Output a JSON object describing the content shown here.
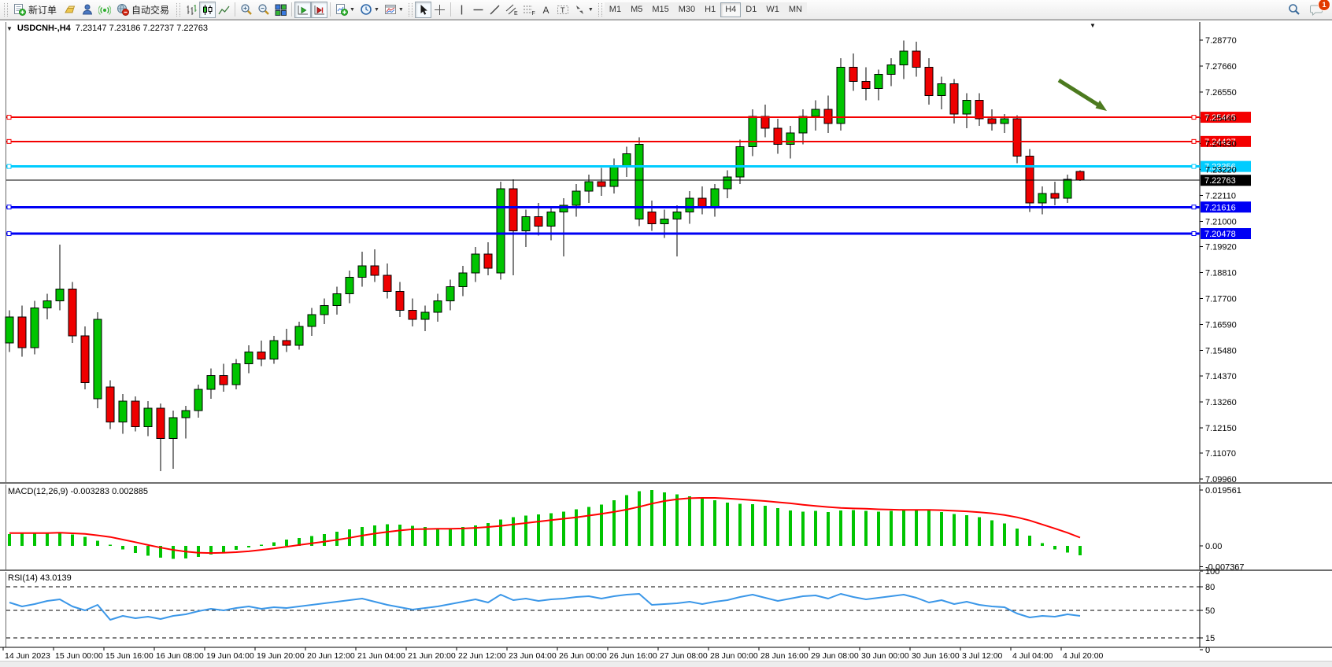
{
  "toolbar": {
    "new_order_label": "新订单",
    "auto_trading_label": "自动交易",
    "timeframes": [
      "M1",
      "M5",
      "M15",
      "M30",
      "H1",
      "H4",
      "D1",
      "W1",
      "MN"
    ],
    "active_timeframe": "H4",
    "chat_badge_count": "1"
  },
  "chart_header": {
    "symbol": "USDCNH-,H4",
    "ohlc": "7.23147 7.23186 7.22737 7.22763"
  },
  "price_axis": {
    "ticks": [
      "7.28770",
      "7.27660",
      "7.26550",
      "7.25440",
      "7.24330",
      "7.23220",
      "7.22110",
      "7.21000",
      "7.19920",
      "7.18810",
      "7.17700",
      "7.16590",
      "7.15480",
      "7.14370",
      "7.13260",
      "7.12150",
      "7.11070",
      "7.09960"
    ]
  },
  "hlines": [
    {
      "label": "7.25465",
      "value": 7.25465,
      "color": "#F40000",
      "width": 2,
      "type": "resistance"
    },
    {
      "label": "7.24427",
      "value": 7.24427,
      "color": "#F40000",
      "width": 2,
      "type": "resistance"
    },
    {
      "label": "7.23356",
      "value": 7.23356,
      "color": "#00CCFF",
      "width": 3,
      "type": "level"
    },
    {
      "label": "7.22763",
      "value": 7.22763,
      "color": "#000000",
      "width": 1,
      "type": "current-price"
    },
    {
      "label": "7.21616",
      "value": 7.21616,
      "color": "#0000F4",
      "width": 3,
      "type": "support"
    },
    {
      "label": "7.20478",
      "value": 7.20478,
      "color": "#0000F4",
      "width": 3,
      "type": "support"
    }
  ],
  "time_axis": {
    "labels": [
      "14 Jun 2023",
      "15 Jun 00:00",
      "15 Jun 16:00",
      "16 Jun 08:00",
      "19 Jun 04:00",
      "19 Jun 20:00",
      "20 Jun 12:00",
      "21 Jun 04:00",
      "21 Jun 20:00",
      "22 Jun 12:00",
      "23 Jun 04:00",
      "26 Jun 00:00",
      "26 Jun 16:00",
      "27 Jun 08:00",
      "28 Jun 00:00",
      "28 Jun 16:00",
      "29 Jun 08:00",
      "30 Jun 00:00",
      "30 Jun 16:00",
      "3 Jul 12:00",
      "4 Jul 04:00",
      "4 Jul 20:00"
    ]
  },
  "indicators": {
    "macd": {
      "label": "MACD(12,26,9)",
      "values_text": "-0.003283 0.002885",
      "axis": [
        "0.019561",
        "0.00",
        "-0.007367"
      ],
      "axis_values": [
        0.019561,
        0.0,
        -0.007367
      ]
    },
    "rsi": {
      "label": "RSI(14)",
      "value_text": "43.0139",
      "axis": [
        "100",
        "80",
        "50",
        "15",
        "0"
      ],
      "axis_values": [
        100,
        80,
        50,
        15,
        0
      ],
      "dashed_levels": [
        80,
        50,
        15
      ]
    }
  },
  "annotation": {
    "type": "down-right-arrow",
    "color": "#4C7A1F"
  },
  "colors": {
    "candle_up": "#00C400",
    "candle_down": "#EE0000",
    "candle_outline": "#000000",
    "macd_histogram": "#00C400",
    "macd_signal": "#FF0000",
    "rsi_line": "#3B97E8",
    "axis_text": "#000000",
    "label_text": "#FFFFFF"
  },
  "chart_data": {
    "type": "candlestick",
    "symbol": "USDCNH-",
    "timeframe": "H4",
    "title": "USDCNH-,H4 7.23147 7.23186 7.22737 7.22763",
    "ylim": [
      7.0996,
      7.2877
    ],
    "candles_ohlc": [
      [
        7.158,
        7.172,
        7.154,
        7.169
      ],
      [
        7.169,
        7.174,
        7.152,
        7.156
      ],
      [
        7.156,
        7.176,
        7.153,
        7.173
      ],
      [
        7.173,
        7.179,
        7.168,
        7.176
      ],
      [
        7.176,
        7.2,
        7.172,
        7.181
      ],
      [
        7.181,
        7.184,
        7.158,
        7.161
      ],
      [
        7.161,
        7.165,
        7.138,
        7.141
      ],
      [
        7.134,
        7.171,
        7.13,
        7.168
      ],
      [
        7.139,
        7.142,
        7.121,
        7.124
      ],
      [
        7.124,
        7.136,
        7.119,
        7.133
      ],
      [
        7.133,
        7.135,
        7.12,
        7.122
      ],
      [
        7.122,
        7.133,
        7.118,
        7.13
      ],
      [
        7.13,
        7.132,
        7.103,
        7.117
      ],
      [
        7.117,
        7.129,
        7.104,
        7.126
      ],
      [
        7.126,
        7.131,
        7.117,
        7.129
      ],
      [
        7.129,
        7.14,
        7.126,
        7.138
      ],
      [
        7.138,
        7.147,
        7.134,
        7.144
      ],
      [
        7.144,
        7.149,
        7.137,
        7.14
      ],
      [
        7.14,
        7.151,
        7.138,
        7.149
      ],
      [
        7.149,
        7.157,
        7.145,
        7.154
      ],
      [
        7.154,
        7.159,
        7.148,
        7.151
      ],
      [
        7.151,
        7.161,
        7.149,
        7.159
      ],
      [
        7.159,
        7.164,
        7.154,
        7.157
      ],
      [
        7.157,
        7.167,
        7.155,
        7.165
      ],
      [
        7.165,
        7.173,
        7.161,
        7.17
      ],
      [
        7.17,
        7.177,
        7.166,
        7.174
      ],
      [
        7.174,
        7.182,
        7.17,
        7.179
      ],
      [
        7.179,
        7.189,
        7.175,
        7.186
      ],
      [
        7.186,
        7.197,
        7.182,
        7.191
      ],
      [
        7.191,
        7.198,
        7.184,
        7.187
      ],
      [
        7.187,
        7.192,
        7.177,
        7.18
      ],
      [
        7.18,
        7.184,
        7.169,
        7.172
      ],
      [
        7.172,
        7.177,
        7.165,
        7.168
      ],
      [
        7.168,
        7.174,
        7.163,
        7.171
      ],
      [
        7.171,
        7.179,
        7.167,
        7.176
      ],
      [
        7.176,
        7.185,
        7.172,
        7.182
      ],
      [
        7.182,
        7.191,
        7.178,
        7.188
      ],
      [
        7.188,
        7.199,
        7.184,
        7.196
      ],
      [
        7.196,
        7.201,
        7.187,
        7.19
      ],
      [
        7.188,
        7.227,
        7.185,
        7.224
      ],
      [
        7.224,
        7.228,
        7.187,
        7.206
      ],
      [
        7.206,
        7.215,
        7.199,
        7.212
      ],
      [
        7.212,
        7.218,
        7.204,
        7.208
      ],
      [
        7.208,
        7.216,
        7.202,
        7.214
      ],
      [
        7.214,
        7.22,
        7.195,
        7.217
      ],
      [
        7.217,
        7.226,
        7.212,
        7.223
      ],
      [
        7.223,
        7.23,
        7.218,
        7.227
      ],
      [
        7.227,
        7.233,
        7.221,
        7.225
      ],
      [
        7.225,
        7.237,
        7.222,
        7.234
      ],
      [
        7.234,
        7.242,
        7.229,
        7.239
      ],
      [
        7.211,
        7.246,
        7.208,
        7.243
      ],
      [
        7.214,
        7.219,
        7.206,
        7.209
      ],
      [
        7.209,
        7.215,
        7.203,
        7.211
      ],
      [
        7.211,
        7.217,
        7.195,
        7.214
      ],
      [
        7.214,
        7.223,
        7.209,
        7.22
      ],
      [
        7.22,
        7.225,
        7.213,
        7.216
      ],
      [
        7.216,
        7.226,
        7.212,
        7.224
      ],
      [
        7.224,
        7.232,
        7.22,
        7.229
      ],
      [
        7.229,
        7.245,
        7.226,
        7.242
      ],
      [
        7.242,
        7.258,
        7.238,
        7.255
      ],
      [
        7.255,
        7.26,
        7.246,
        7.25
      ],
      [
        7.25,
        7.254,
        7.239,
        7.243
      ],
      [
        7.243,
        7.251,
        7.237,
        7.248
      ],
      [
        7.248,
        7.258,
        7.243,
        7.255
      ],
      [
        7.255,
        7.262,
        7.249,
        7.258
      ],
      [
        7.258,
        7.264,
        7.248,
        7.252
      ],
      [
        7.252,
        7.28,
        7.249,
        7.276
      ],
      [
        7.276,
        7.282,
        7.266,
        7.27
      ],
      [
        7.27,
        7.276,
        7.262,
        7.267
      ],
      [
        7.267,
        7.275,
        7.262,
        7.273
      ],
      [
        7.273,
        7.28,
        7.268,
        7.277
      ],
      [
        7.277,
        7.2876,
        7.271,
        7.283
      ],
      [
        7.283,
        7.2871,
        7.272,
        7.276
      ],
      [
        7.276,
        7.28,
        7.26,
        7.264
      ],
      [
        7.264,
        7.272,
        7.258,
        7.269
      ],
      [
        7.269,
        7.271,
        7.252,
        7.256
      ],
      [
        7.256,
        7.265,
        7.25,
        7.262
      ],
      [
        7.262,
        7.265,
        7.251,
        7.254
      ],
      [
        7.254,
        7.258,
        7.249,
        7.252
      ],
      [
        7.252,
        7.256,
        7.248,
        7.254
      ],
      [
        7.254,
        7.2555,
        7.235,
        7.238
      ],
      [
        7.238,
        7.241,
        7.214,
        7.218
      ],
      [
        7.218,
        7.225,
        7.213,
        7.222
      ],
      [
        7.222,
        7.227,
        7.217,
        7.22
      ],
      [
        7.22,
        7.23,
        7.218,
        7.228
      ],
      [
        7.23147,
        7.23186,
        7.22737,
        7.22763
      ]
    ],
    "macd_histogram": [
      0.0042,
      0.0044,
      0.0046,
      0.0047,
      0.0046,
      0.004,
      0.0032,
      0.0018,
      0.0004,
      -0.0012,
      -0.0025,
      -0.0035,
      -0.0042,
      -0.0046,
      -0.0044,
      -0.0038,
      -0.003,
      -0.0022,
      -0.0014,
      -0.0006,
      0.0004,
      0.0012,
      0.0022,
      0.0028,
      0.0034,
      0.0042,
      0.005,
      0.0058,
      0.0066,
      0.0072,
      0.0076,
      0.0074,
      0.007,
      0.0066,
      0.0062,
      0.0062,
      0.0066,
      0.0072,
      0.008,
      0.0092,
      0.01,
      0.0106,
      0.011,
      0.0114,
      0.012,
      0.0128,
      0.0136,
      0.0144,
      0.016,
      0.0178,
      0.0192,
      0.0196,
      0.0188,
      0.018,
      0.0174,
      0.0168,
      0.016,
      0.0152,
      0.0148,
      0.0146,
      0.014,
      0.0132,
      0.0124,
      0.012,
      0.0122,
      0.0118,
      0.0124,
      0.0126,
      0.0122,
      0.012,
      0.0122,
      0.0126,
      0.0128,
      0.0124,
      0.0118,
      0.0112,
      0.0108,
      0.01,
      0.009,
      0.0078,
      0.006,
      0.0036,
      0.001,
      -0.0012,
      -0.0024,
      -0.003283
    ],
    "macd_signal": [
      0.0045,
      0.0045,
      0.0045,
      0.0045,
      0.0046,
      0.0044,
      0.0042,
      0.0037,
      0.0031,
      0.0022,
      0.0013,
      0.0003,
      -0.0006,
      -0.0014,
      -0.002,
      -0.0024,
      -0.0025,
      -0.0024,
      -0.0022,
      -0.0019,
      -0.0014,
      -0.0009,
      -0.0003,
      0.0003,
      0.0009,
      0.0015,
      0.0021,
      0.0028,
      0.0036,
      0.0043,
      0.0049,
      0.0054,
      0.0058,
      0.0059,
      0.006,
      0.006,
      0.0061,
      0.0063,
      0.0066,
      0.007,
      0.0075,
      0.008,
      0.0085,
      0.009,
      0.0095,
      0.01,
      0.0106,
      0.0112,
      0.0119,
      0.0127,
      0.0137,
      0.0148,
      0.0157,
      0.0163,
      0.0167,
      0.0168,
      0.0168,
      0.0166,
      0.0163,
      0.016,
      0.0157,
      0.0153,
      0.0149,
      0.0144,
      0.014,
      0.0136,
      0.0133,
      0.0131,
      0.013,
      0.0128,
      0.0127,
      0.0126,
      0.0126,
      0.0126,
      0.0125,
      0.0123,
      0.0121,
      0.0118,
      0.0114,
      0.0108,
      0.01,
      0.0089,
      0.0075,
      0.0061,
      0.0046,
      0.0029
    ],
    "rsi": [
      60,
      55,
      58,
      62,
      64,
      55,
      50,
      57,
      38,
      43,
      40,
      42,
      39,
      43,
      45,
      49,
      52,
      50,
      53,
      55,
      52,
      54,
      53,
      55,
      57,
      59,
      61,
      63,
      65,
      61,
      57,
      54,
      51,
      53,
      55,
      58,
      61,
      64,
      60,
      70,
      63,
      65,
      62,
      64,
      65,
      67,
      68,
      65,
      68,
      70,
      71,
      57,
      58,
      59,
      61,
      58,
      61,
      63,
      67,
      70,
      66,
      62,
      65,
      68,
      69,
      65,
      71,
      67,
      64,
      66,
      68,
      70,
      66,
      60,
      63,
      58,
      61,
      57,
      55,
      54,
      46,
      41,
      43,
      42,
      45,
      43.0139
    ]
  }
}
